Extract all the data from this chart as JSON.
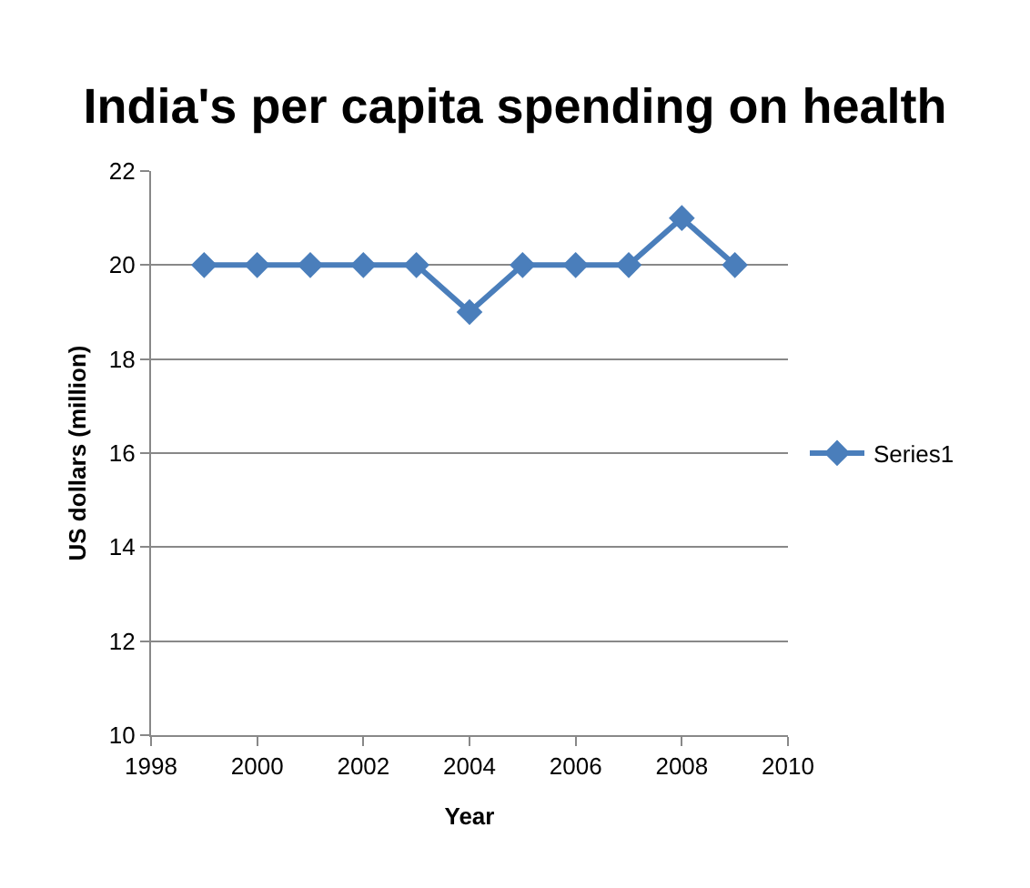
{
  "chart_data": {
    "type": "line",
    "title": "India's per capita spending on health",
    "xlabel": "Year",
    "ylabel": "US dollars (million)",
    "x": [
      1999,
      2000,
      2001,
      2002,
      2003,
      2004,
      2005,
      2006,
      2007,
      2008,
      2009
    ],
    "series": [
      {
        "name": "Series1",
        "color": "#4a7ebb",
        "values": [
          20,
          20,
          20,
          20,
          20,
          19,
          20,
          20,
          20,
          21,
          20
        ]
      }
    ],
    "xlim": [
      1998,
      2010
    ],
    "xticks": [
      1998,
      2000,
      2002,
      2004,
      2006,
      2008,
      2010
    ],
    "ylim": [
      10,
      22
    ],
    "yticks": [
      10,
      12,
      14,
      16,
      18,
      20,
      22
    ],
    "grid": "y",
    "legend": "right",
    "marker": "diamond",
    "line_style": "solid"
  }
}
